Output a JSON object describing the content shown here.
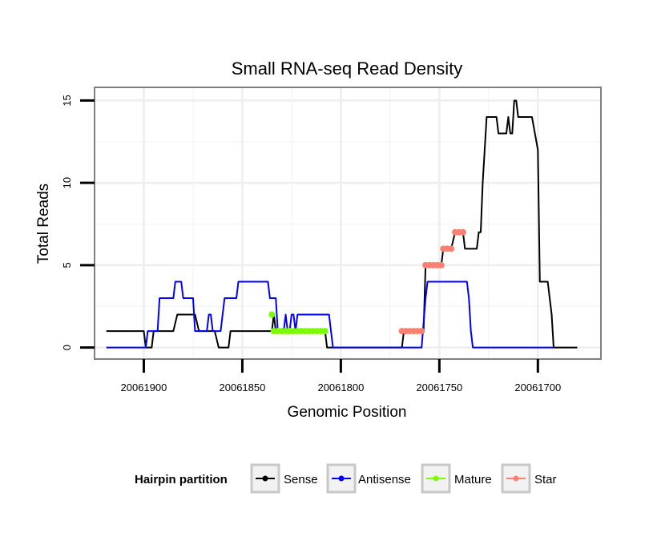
{
  "chart_data": {
    "type": "line",
    "title": "Small RNA-seq Read Density",
    "xlabel": "Genomic Position",
    "ylabel": "Total Reads",
    "xlim": [
      20061925,
      20061668
    ],
    "ylim": [
      -0.7,
      15.8
    ],
    "x_reversed": true,
    "x_ticks": [
      20061900,
      20061850,
      20061800,
      20061750,
      20061700
    ],
    "x_tick_labels": [
      "20061900",
      "20061850",
      "20061800",
      "20061750",
      "20061700"
    ],
    "y_ticks": [
      0,
      5,
      10,
      15
    ],
    "y_tick_labels": [
      "0",
      "5",
      "10",
      "15"
    ],
    "grid": true,
    "legend_position": "bottom",
    "legend": {
      "title": "Hairpin partition",
      "entries": [
        "Sense",
        "Antisense",
        "Mature",
        "Star"
      ]
    },
    "colors": {
      "Sense": "#000000",
      "Antisense": "#0000ff",
      "Mature": "#7cfc00",
      "Star": "#fa8072"
    },
    "series": [
      {
        "name": "Sense",
        "kind": "line",
        "points": [
          [
            20061919,
            1
          ],
          [
            20061900,
            1
          ],
          [
            20061899,
            0
          ],
          [
            20061896,
            0
          ],
          [
            20061895,
            1
          ],
          [
            20061885,
            1
          ],
          [
            20061883,
            2
          ],
          [
            20061874,
            2
          ],
          [
            20061872,
            1
          ],
          [
            20061864,
            1
          ],
          [
            20061862,
            0
          ],
          [
            20061857,
            0
          ],
          [
            20061856,
            1
          ],
          [
            20061835,
            1
          ],
          [
            20061834,
            2
          ],
          [
            20061833,
            1
          ],
          [
            20061808,
            1
          ],
          [
            20061807,
            0
          ],
          [
            20061769,
            0
          ],
          [
            20061768,
            1
          ],
          [
            20061758,
            1
          ],
          [
            20061757,
            5
          ],
          [
            20061749,
            5
          ],
          [
            20061748,
            6
          ],
          [
            20061744,
            6
          ],
          [
            20061742,
            7
          ],
          [
            20061738,
            7
          ],
          [
            20061737,
            6
          ],
          [
            20061731,
            6
          ],
          [
            20061730,
            7
          ],
          [
            20061729,
            7
          ],
          [
            20061728,
            10
          ],
          [
            20061726,
            14
          ],
          [
            20061721,
            14
          ],
          [
            20061720,
            13
          ],
          [
            20061716,
            13
          ],
          [
            20061715,
            14
          ],
          [
            20061714,
            13
          ],
          [
            20061713,
            13
          ],
          [
            20061712,
            15
          ],
          [
            20061711,
            15
          ],
          [
            20061710,
            14
          ],
          [
            20061703,
            14
          ],
          [
            20061700,
            12
          ],
          [
            20061699,
            4
          ],
          [
            20061695,
            4
          ],
          [
            20061693,
            2
          ],
          [
            20061692,
            0
          ],
          [
            20061680,
            0
          ]
        ]
      },
      {
        "name": "Antisense",
        "kind": "line",
        "points": [
          [
            20061919,
            0
          ],
          [
            20061899,
            0
          ],
          [
            20061898,
            1
          ],
          [
            20061893,
            1
          ],
          [
            20061892,
            3
          ],
          [
            20061885,
            3
          ],
          [
            20061884,
            4
          ],
          [
            20061881,
            4
          ],
          [
            20061880,
            3
          ],
          [
            20061875,
            3
          ],
          [
            20061874,
            1
          ],
          [
            20061868,
            1
          ],
          [
            20061867,
            2
          ],
          [
            20061866,
            2
          ],
          [
            20061865,
            1
          ],
          [
            20061861,
            1
          ],
          [
            20061860,
            2
          ],
          [
            20061859,
            3
          ],
          [
            20061853,
            3
          ],
          [
            20061852,
            4
          ],
          [
            20061837,
            4
          ],
          [
            20061836,
            3
          ],
          [
            20061833,
            3
          ],
          [
            20061832,
            1
          ],
          [
            20061829,
            1
          ],
          [
            20061828,
            2
          ],
          [
            20061827,
            1
          ],
          [
            20061826,
            1
          ],
          [
            20061825,
            2
          ],
          [
            20061824,
            2
          ],
          [
            20061823,
            1
          ],
          [
            20061822,
            2
          ],
          [
            20061806,
            2
          ],
          [
            20061805,
            1
          ],
          [
            20061804,
            0
          ],
          [
            20061759,
            0
          ],
          [
            20061757,
            3
          ],
          [
            20061756,
            4
          ],
          [
            20061736,
            4
          ],
          [
            20061735,
            3
          ],
          [
            20061734,
            1
          ],
          [
            20061733,
            0
          ],
          [
            20061692,
            0
          ]
        ]
      },
      {
        "name": "Mature",
        "kind": "points",
        "points": [
          [
            20061835,
            2
          ],
          [
            20061834,
            1
          ],
          [
            20061832,
            1
          ],
          [
            20061830,
            1
          ],
          [
            20061828,
            1
          ],
          [
            20061826,
            1
          ],
          [
            20061824,
            1
          ],
          [
            20061822,
            1
          ],
          [
            20061820,
            1
          ],
          [
            20061818,
            1
          ],
          [
            20061816,
            1
          ],
          [
            20061814,
            1
          ],
          [
            20061812,
            1
          ],
          [
            20061810,
            1
          ],
          [
            20061808,
            1
          ]
        ]
      },
      {
        "name": "Star",
        "kind": "points",
        "points": [
          [
            20061769,
            1
          ],
          [
            20061767,
            1
          ],
          [
            20061765,
            1
          ],
          [
            20061763,
            1
          ],
          [
            20061761,
            1
          ],
          [
            20061759,
            1
          ],
          [
            20061757,
            5
          ],
          [
            20061755,
            5
          ],
          [
            20061753,
            5
          ],
          [
            20061751,
            5
          ],
          [
            20061749,
            5
          ],
          [
            20061748,
            6
          ],
          [
            20061746,
            6
          ],
          [
            20061744,
            6
          ],
          [
            20061742,
            7
          ],
          [
            20061740,
            7
          ],
          [
            20061738,
            7
          ]
        ]
      }
    ]
  }
}
